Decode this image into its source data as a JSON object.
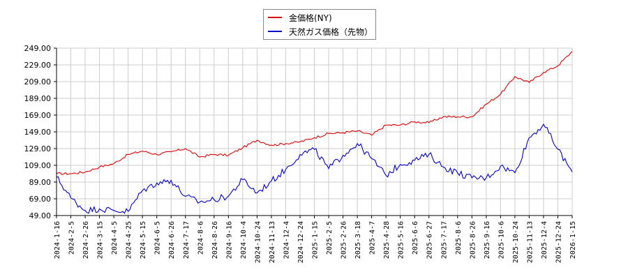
{
  "chart_data": {
    "type": "line",
    "title": "",
    "xlabel": "",
    "ylabel": "",
    "ylim": [
      49,
      249
    ],
    "yticks": [
      "49.00",
      "69.00",
      "89.00",
      "109.00",
      "129.00",
      "149.00",
      "169.00",
      "189.00",
      "209.00",
      "229.00",
      "249.00"
    ],
    "grid": true,
    "legend_position": "top-center",
    "categories": [
      "2024-1-16",
      "2024-2-5",
      "2024-2-26",
      "2024-3-15",
      "2024-4-5",
      "2024-4-25",
      "2024-5-15",
      "2024-6-5",
      "2024-6-26",
      "2024-7-17",
      "2024-8-6",
      "2024-8-26",
      "2024-9-16",
      "2024-10-4",
      "2024-10-24",
      "2024-11-13",
      "2024-12-4",
      "2024-12-24",
      "2025-1-15",
      "2025-2-5",
      "2025-2-26",
      "2025-3-18",
      "2025-4-7",
      "2025-4-28",
      "2025-5-16",
      "2025-6-6",
      "2025-6-27",
      "2025-7-17",
      "2025-8-6",
      "2025-8-26",
      "2025-9-16",
      "2025-10-6",
      "2025-10-24",
      "2025-11-13",
      "2025-12-4",
      "2025-12-24",
      "2026-1-15"
    ],
    "series": [
      {
        "name": "金価格(NY)",
        "color": "#dd0000",
        "values": [
          99,
          99,
          101,
          107,
          111,
          122,
          126,
          122,
          125,
          129,
          119,
          122,
          121,
          130,
          139,
          133,
          135,
          137,
          142,
          147,
          148,
          150,
          145,
          157,
          157,
          161,
          160,
          167,
          167,
          167,
          182,
          194,
          215,
          208,
          220,
          228,
          245
        ]
      },
      {
        "name": "天然ガス価格（先物）",
        "color": "#0000cc",
        "values": [
          95,
          70,
          55,
          57,
          55,
          54,
          79,
          88,
          91,
          72,
          65,
          68,
          72,
          92,
          76,
          90,
          104,
          122,
          128,
          105,
          121,
          135,
          117,
          97,
          110,
          115,
          122,
          107,
          100,
          94,
          94,
          108,
          100,
          142,
          158,
          128,
          101
        ]
      }
    ]
  },
  "legend": {
    "items": [
      {
        "label": "金価格(NY)",
        "color": "#dd0000"
      },
      {
        "label": "天然ガス価格（先物）",
        "color": "#0000cc"
      }
    ]
  }
}
